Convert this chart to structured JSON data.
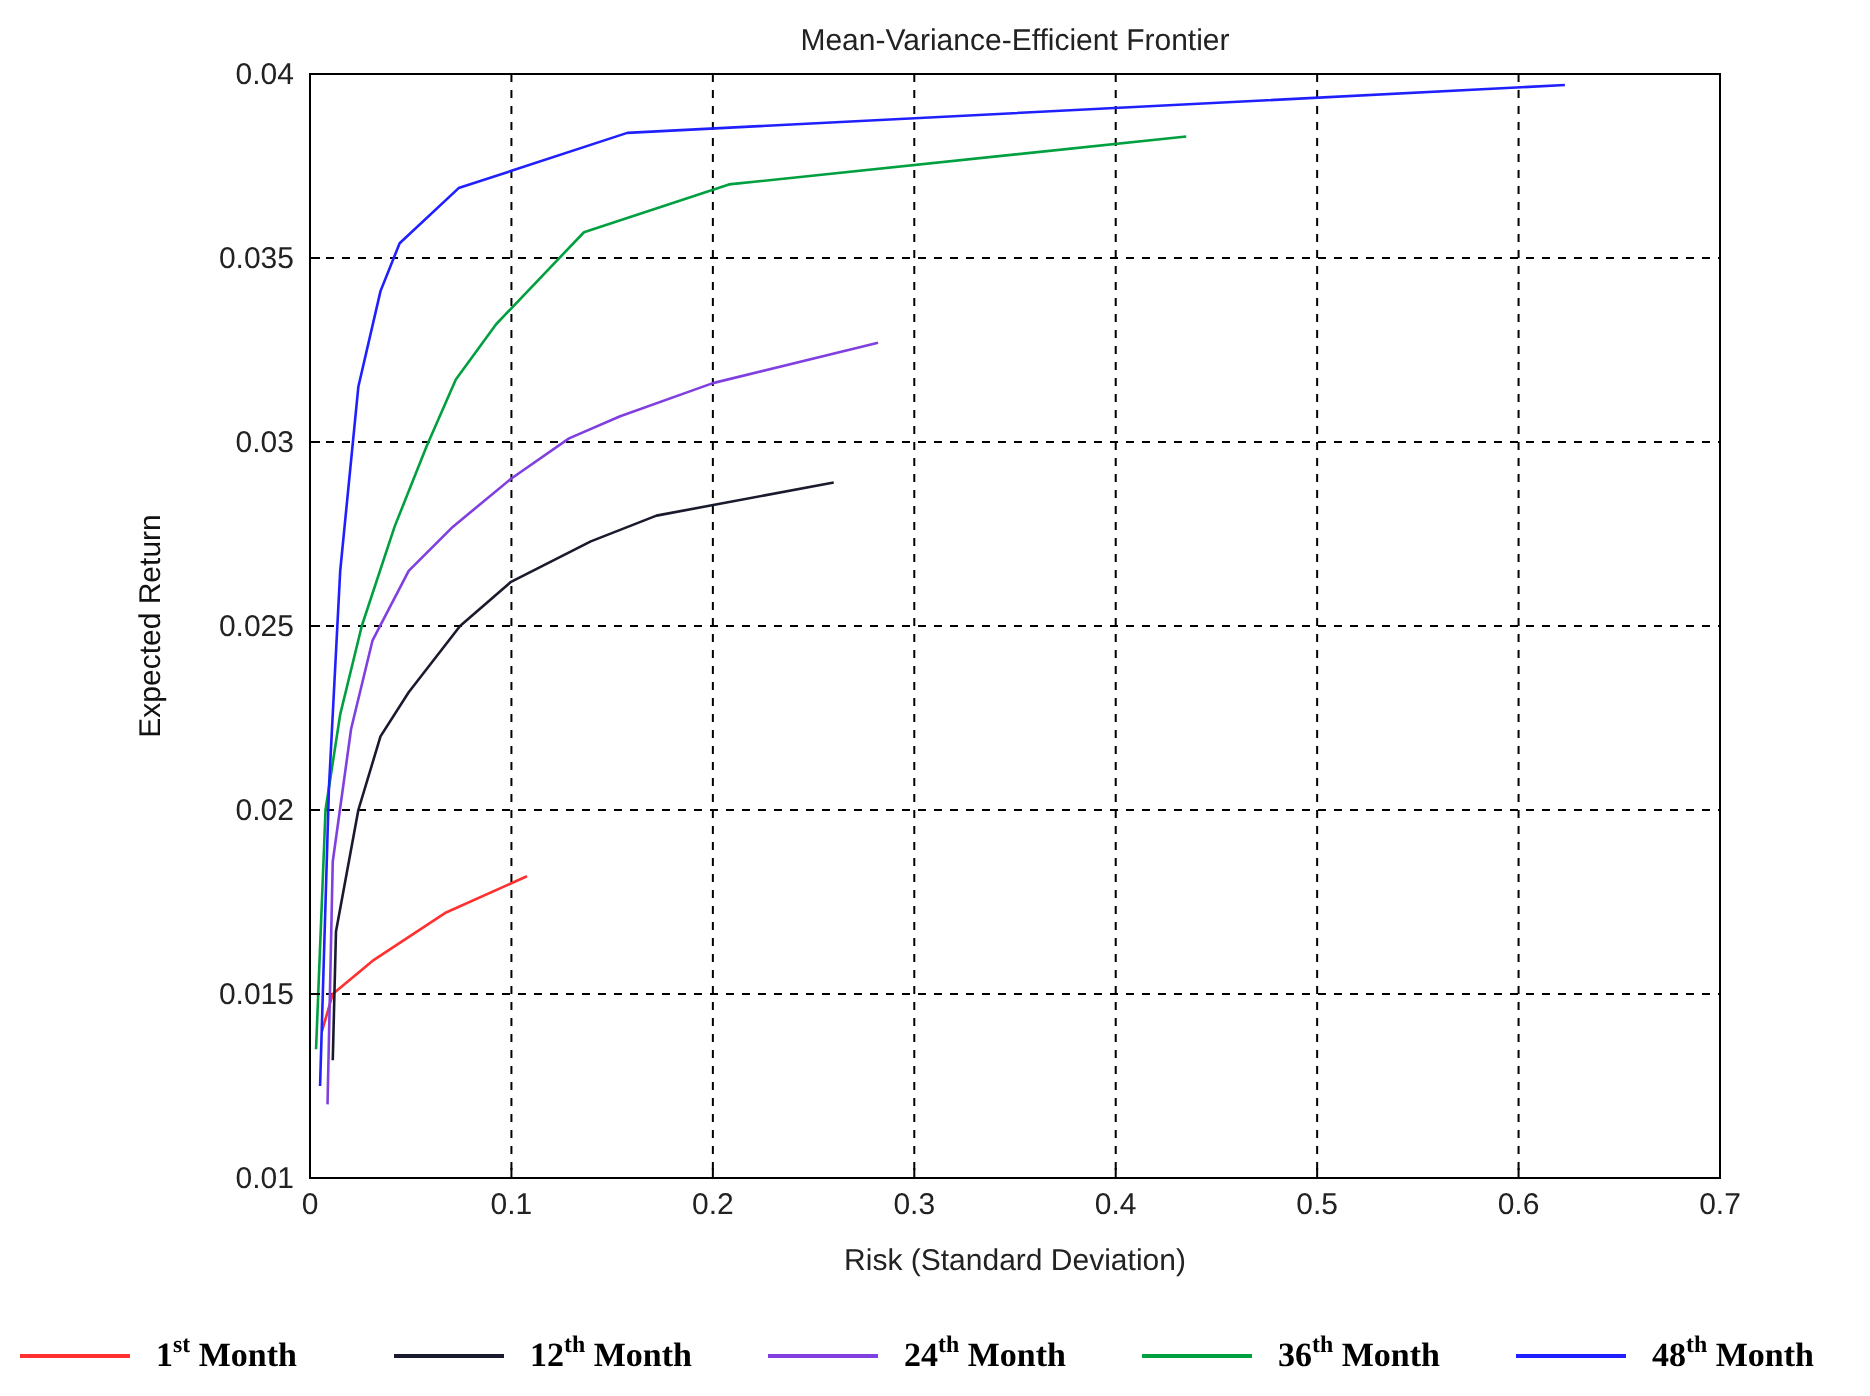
{
  "chart_data": {
    "type": "line",
    "title": "Mean-Variance-Efficient Frontier",
    "xlabel": "Risk (Standard Deviation)",
    "ylabel": "Expected Return",
    "xlim": [
      0,
      0.7
    ],
    "xticks": [
      0,
      0.1,
      0.2,
      0.3,
      0.4,
      0.5,
      0.6,
      0.7
    ],
    "ylim": [
      0.01,
      0.04
    ],
    "yticks": [
      0.01,
      0.015,
      0.02,
      0.025,
      0.03,
      0.035,
      0.04
    ],
    "grid": true,
    "legend": "bottom",
    "series": [
      {
        "name": "1$^{st}$ Month",
        "color": "#ff3030",
        "x": [
          0.006,
          0.0113,
          0.031,
          0.067,
          0.1077
        ],
        "values": [
          0.014,
          0.015,
          0.0159,
          0.0172,
          0.0182
        ]
      },
      {
        "name": "12$^{th}$ Month",
        "color": "#1a1a2e",
        "x": [
          0.0113,
          0.0129,
          0.024,
          0.035,
          0.049,
          0.0745,
          0.0998,
          0.1394,
          0.172,
          0.26
        ],
        "values": [
          0.0132,
          0.0167,
          0.02,
          0.022,
          0.0232,
          0.025,
          0.0262,
          0.0273,
          0.028,
          0.0289
        ]
      },
      {
        "name": "24$^{th}$ Month",
        "color": "#8040e0",
        "x": [
          0.0087,
          0.0113,
          0.0204,
          0.031,
          0.049,
          0.071,
          0.0998,
          0.1286,
          0.154,
          0.2,
          0.282
        ],
        "values": [
          0.012,
          0.0186,
          0.0222,
          0.0246,
          0.0265,
          0.0277,
          0.029,
          0.0301,
          0.0307,
          0.0316,
          0.0327
        ]
      },
      {
        "name": "36$^{th}$ Month",
        "color": "#00a040",
        "x": [
          0.003,
          0.0077,
          0.015,
          0.0257,
          0.042,
          0.058,
          0.0724,
          0.0924,
          0.136,
          0.208,
          0.435
        ],
        "values": [
          0.0135,
          0.02,
          0.0226,
          0.025,
          0.0277,
          0.0299,
          0.0317,
          0.0332,
          0.0357,
          0.037,
          0.0383
        ]
      },
      {
        "name": "48$^{th}$ Month",
        "color": "#2020ff",
        "x": [
          0.005,
          0.0094,
          0.015,
          0.024,
          0.035,
          0.0445,
          0.0738,
          0.1575,
          0.623
        ],
        "values": [
          0.0125,
          0.0206,
          0.0265,
          0.0315,
          0.0341,
          0.0354,
          0.0369,
          0.0384,
          0.0397
        ]
      }
    ]
  }
}
